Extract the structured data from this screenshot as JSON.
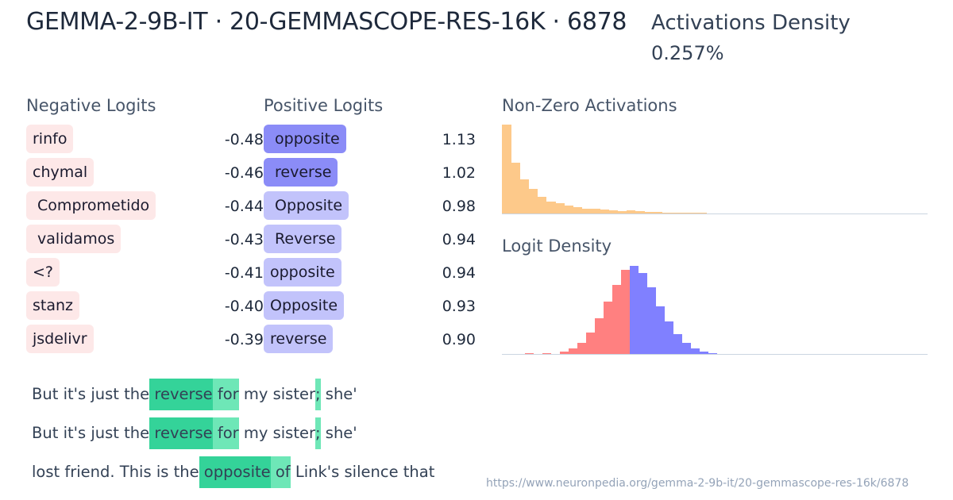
{
  "header": {
    "title": "GEMMA-2-9B-IT · 20-GEMMASCOPE-RES-16K · 6878",
    "density_label": "Activations Density",
    "density_value": "0.257%"
  },
  "negative_logits": {
    "title": "Negative Logits",
    "items": [
      {
        "token": "rinfo",
        "value": "-0.48"
      },
      {
        "token": "chymal",
        "value": "-0.46"
      },
      {
        "token": " Comprometido",
        "value": "-0.44"
      },
      {
        "token": " validamos",
        "value": "-0.43"
      },
      {
        "token": "<?",
        "value": "-0.41"
      },
      {
        "token": "stanz",
        "value": "-0.40"
      },
      {
        "token": "jsdelivr",
        "value": "-0.39"
      }
    ]
  },
  "positive_logits": {
    "title": "Positive Logits",
    "items": [
      {
        "token": " opposite",
        "value": "1.13",
        "color": "#8b8cf7"
      },
      {
        "token": " reverse",
        "value": "1.02",
        "color": "#8b8cf7"
      },
      {
        "token": " Opposite",
        "value": "0.98",
        "color": "#c2c3fb"
      },
      {
        "token": " Reverse",
        "value": "0.94",
        "color": "#c2c3fb"
      },
      {
        "token": "opposite",
        "value": "0.94",
        "color": "#c2c3fb"
      },
      {
        "token": "Opposite",
        "value": "0.93",
        "color": "#c2c3fb"
      },
      {
        "token": "reverse",
        "value": "0.90",
        "color": "#c2c3fb"
      }
    ]
  },
  "activations_hist": {
    "title": "Non-Zero Activations",
    "color": "#fdc98a"
  },
  "logit_hist": {
    "title": "Logit Density",
    "neg_color": "#ff8080",
    "pos_color": "#8080ff"
  },
  "chart_data": [
    {
      "type": "bar",
      "title": "Non-Zero Activations",
      "xlabel": "",
      "ylabel": "",
      "categories": [
        "b1",
        "b2",
        "b3",
        "b4",
        "b5",
        "b6",
        "b7",
        "b8",
        "b9",
        "b10",
        "b11",
        "b12",
        "b13",
        "b14",
        "b15",
        "b16",
        "b17",
        "b18",
        "b19",
        "b20",
        "b21",
        "b22",
        "b23"
      ],
      "values": [
        112,
        64,
        43,
        31,
        21,
        15,
        13,
        10,
        8,
        6,
        6,
        5,
        4,
        3,
        4,
        3,
        2,
        2,
        1,
        1,
        1,
        1,
        1
      ],
      "color": "#fdc98a"
    },
    {
      "type": "bar",
      "title": "Logit Density",
      "xlabel": "",
      "ylabel": "",
      "series": [
        {
          "name": "negative",
          "color": "#ff8080",
          "values": [
            1,
            0,
            1,
            0,
            3,
            7,
            14,
            27,
            45,
            66,
            87,
            106
          ]
        },
        {
          "name": "positive",
          "color": "#8080ff",
          "values": [
            111,
            102,
            84,
            60,
            41,
            25,
            14,
            7,
            3,
            1
          ]
        }
      ]
    }
  ],
  "examples": [
    {
      "segments": [
        {
          "text": "But it's just the",
          "hl": ""
        },
        {
          "text": " reverse",
          "hl": "hi1"
        },
        {
          "text": " for",
          "hl": "hi2"
        },
        {
          "text": " my sister",
          "hl": ""
        },
        {
          "text": ";",
          "hl": "hi3"
        },
        {
          "text": " she'",
          "hl": ""
        }
      ]
    },
    {
      "segments": [
        {
          "text": "But it's just the",
          "hl": ""
        },
        {
          "text": " reverse",
          "hl": "hi1"
        },
        {
          "text": " for",
          "hl": "hi2"
        },
        {
          "text": " my sister",
          "hl": ""
        },
        {
          "text": ";",
          "hl": "hi3"
        },
        {
          "text": " she'",
          "hl": ""
        }
      ]
    },
    {
      "segments": [
        {
          "text": "lost friend. This is the",
          "hl": ""
        },
        {
          "text": " opposite",
          "hl": "hi1"
        },
        {
          "text": " of",
          "hl": "hi2"
        },
        {
          "text": " Link's silence that",
          "hl": ""
        }
      ]
    }
  ],
  "footer": {
    "url": "https://www.neuronpedia.org/gemma-2-9b-it/20-gemmascope-res-16k/6878"
  }
}
